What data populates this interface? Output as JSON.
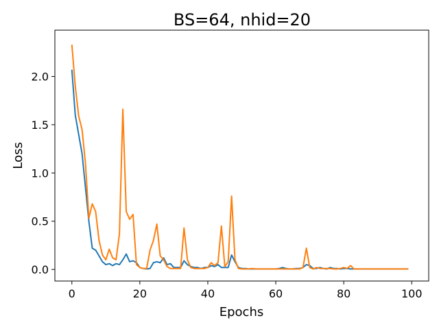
{
  "chart_data": {
    "type": "line",
    "title": "BS=64, nhid=20",
    "xlabel": "Epochs",
    "ylabel": "Loss",
    "xlim": [
      -5,
      105
    ],
    "ylim": [
      -0.12,
      2.48
    ],
    "xticks": [
      0,
      20,
      40,
      60,
      80,
      100
    ],
    "xtick_labels": [
      "0",
      "20",
      "40",
      "60",
      "80",
      "100"
    ],
    "yticks": [
      0.0,
      0.5,
      1.0,
      1.5,
      2.0
    ],
    "ytick_labels": [
      "0.0",
      "0.5",
      "1.0",
      "1.5",
      "2.0"
    ],
    "grid": false,
    "legend": "none",
    "x": [
      0,
      1,
      2,
      3,
      4,
      5,
      6,
      7,
      8,
      9,
      10,
      11,
      12,
      13,
      14,
      15,
      16,
      17,
      18,
      19,
      20,
      21,
      22,
      23,
      24,
      25,
      26,
      27,
      28,
      29,
      30,
      31,
      32,
      33,
      34,
      35,
      36,
      37,
      38,
      39,
      40,
      41,
      42,
      43,
      44,
      45,
      46,
      47,
      48,
      49,
      50,
      51,
      52,
      53,
      54,
      55,
      56,
      57,
      58,
      59,
      60,
      61,
      62,
      63,
      64,
      65,
      66,
      67,
      68,
      69,
      70,
      71,
      72,
      73,
      74,
      75,
      76,
      77,
      78,
      79,
      80,
      81,
      82,
      83,
      84,
      85,
      86,
      87,
      88,
      89,
      90,
      91,
      92,
      93,
      94,
      95,
      96,
      97,
      98,
      99
    ],
    "series": [
      {
        "color": "#1f77b4",
        "values": [
          2.07,
          1.6,
          1.4,
          1.2,
          0.85,
          0.5,
          0.22,
          0.2,
          0.14,
          0.08,
          0.05,
          0.06,
          0.04,
          0.06,
          0.05,
          0.1,
          0.16,
          0.08,
          0.09,
          0.07,
          0.02,
          0.01,
          0.005,
          0.01,
          0.07,
          0.08,
          0.07,
          0.12,
          0.05,
          0.06,
          0.02,
          0.02,
          0.02,
          0.09,
          0.05,
          0.03,
          0.02,
          0.02,
          0.01,
          0.02,
          0.02,
          0.04,
          0.03,
          0.05,
          0.02,
          0.02,
          0.02,
          0.15,
          0.08,
          0.02,
          0.01,
          0.01,
          0.005,
          0.005,
          0.005,
          0.005,
          0.005,
          0.005,
          0.005,
          0.005,
          0.005,
          0.01,
          0.02,
          0.01,
          0.005,
          0.005,
          0.01,
          0.01,
          0.02,
          0.05,
          0.04,
          0.01,
          0.01,
          0.02,
          0.01,
          0.005,
          0.02,
          0.01,
          0.01,
          0.005,
          0.01,
          0.01,
          0.005,
          0.005,
          0.005,
          0.005,
          0.005,
          0.005,
          0.005,
          0.005,
          0.005,
          0.005,
          0.005,
          0.005,
          0.005,
          0.005,
          0.005,
          0.005,
          0.005,
          0.005
        ]
      },
      {
        "color": "#ff7f0e",
        "values": [
          2.33,
          1.9,
          1.59,
          1.45,
          1.1,
          0.53,
          0.68,
          0.6,
          0.3,
          0.15,
          0.1,
          0.21,
          0.12,
          0.1,
          0.37,
          1.66,
          0.6,
          0.52,
          0.57,
          0.05,
          0.02,
          0.01,
          0.01,
          0.2,
          0.3,
          0.47,
          0.14,
          0.1,
          0.03,
          0.01,
          0.01,
          0.01,
          0.01,
          0.43,
          0.1,
          0.02,
          0.01,
          0.01,
          0.01,
          0.01,
          0.02,
          0.07,
          0.04,
          0.07,
          0.45,
          0.03,
          0.08,
          0.76,
          0.1,
          0.01,
          0.005,
          0.005,
          0.005,
          0.01,
          0.005,
          0.005,
          0.005,
          0.005,
          0.005,
          0.005,
          0.005,
          0.005,
          0.005,
          0.005,
          0.005,
          0.005,
          0.005,
          0.005,
          0.02,
          0.22,
          0.02,
          0.005,
          0.02,
          0.01,
          0.01,
          0.01,
          0.01,
          0.005,
          0.005,
          0.01,
          0.02,
          0.01,
          0.04,
          0.005,
          0.005,
          0.005,
          0.005,
          0.005,
          0.005,
          0.005,
          0.005,
          0.005,
          0.005,
          0.005,
          0.005,
          0.005,
          0.005,
          0.005,
          0.005,
          0.005
        ]
      }
    ]
  }
}
